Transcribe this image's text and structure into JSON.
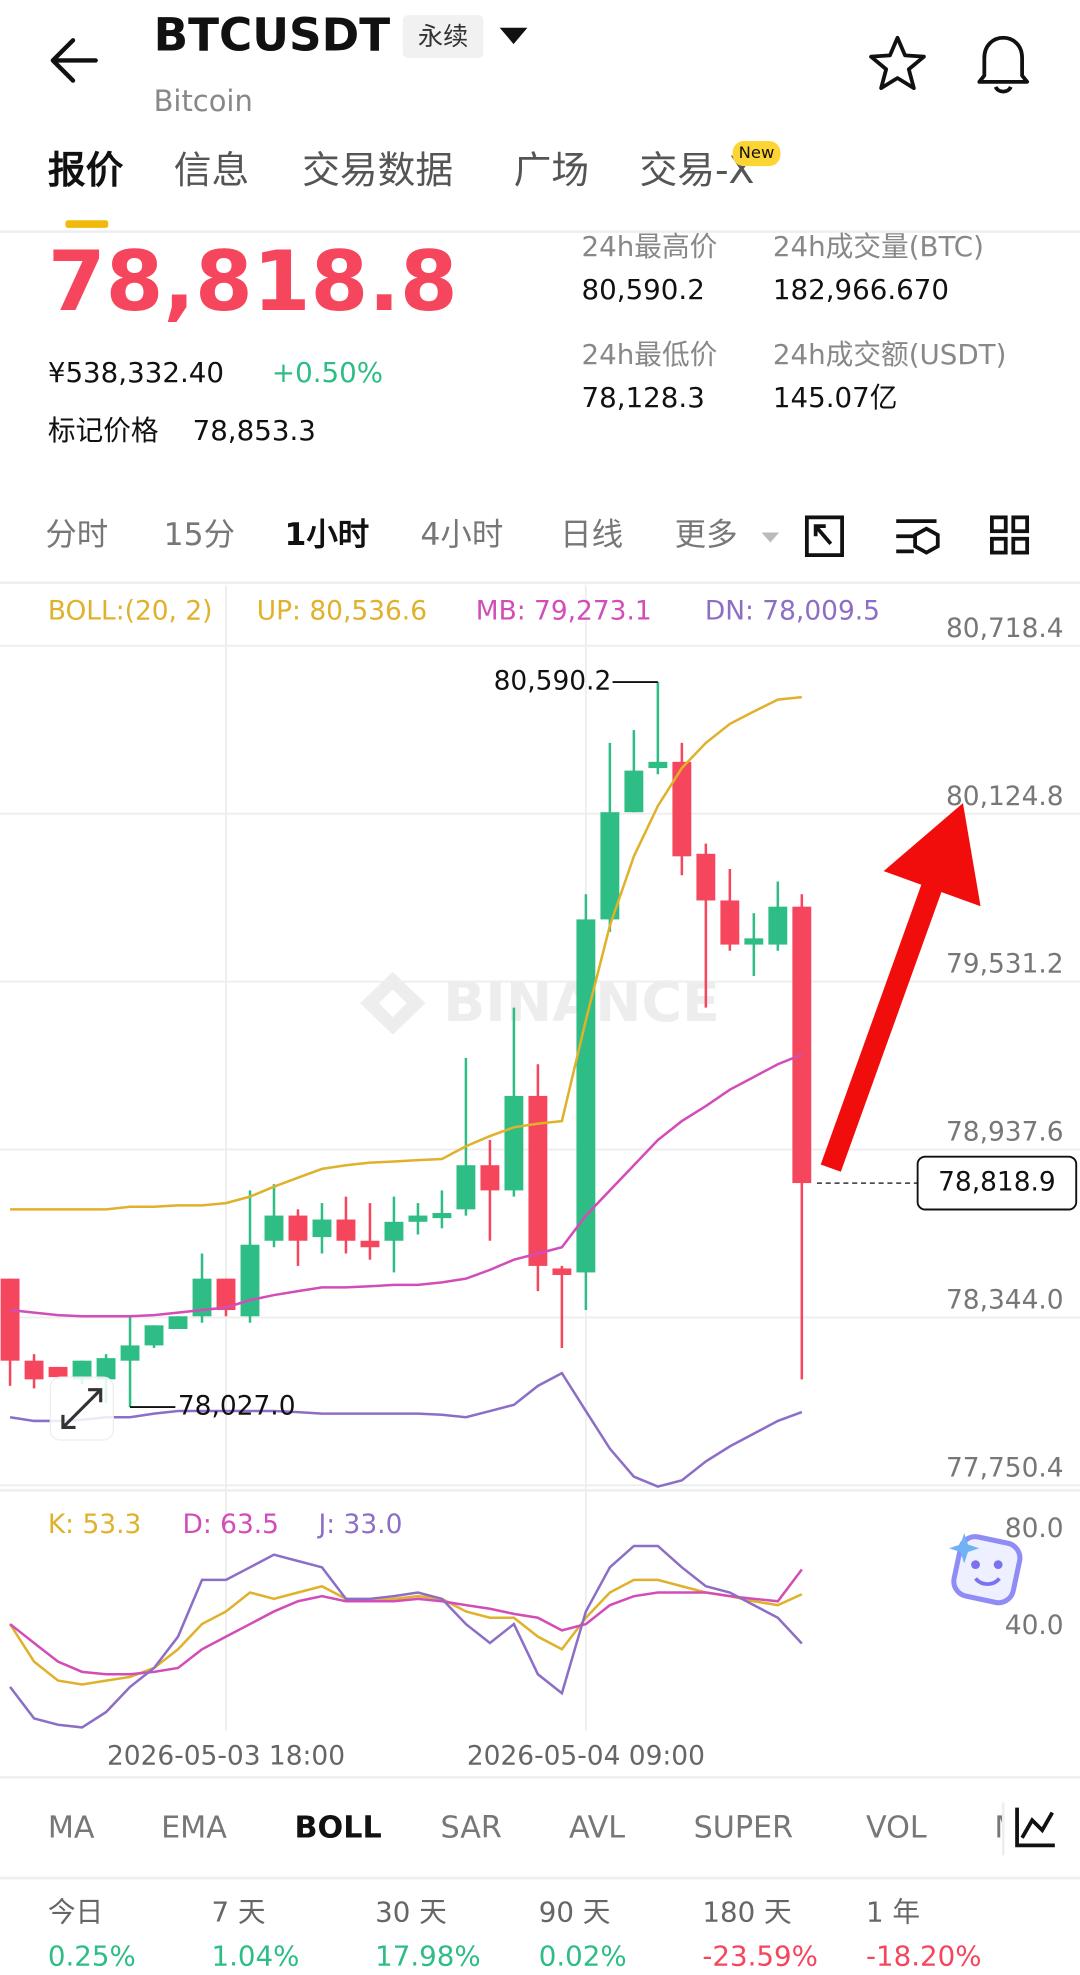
{
  "header": {
    "symbol": "BTCUSDT",
    "contract_tag": "永续",
    "name": "Bitcoin"
  },
  "tabs": {
    "items": [
      "报价",
      "信息",
      "交易数据",
      "广场",
      "交易-X"
    ],
    "active": 0,
    "badge": "New"
  },
  "ticker": {
    "last_price": "78,818.8",
    "cny_price": "¥538,332.40",
    "change": "+0.50%",
    "mark_label": "标记价格",
    "mark_price": "78,853.3",
    "stats": [
      {
        "label": "24h最高价",
        "value": "80,590.2"
      },
      {
        "label": "24h成交量(BTC)",
        "value": "182,966.670"
      },
      {
        "label": "24h最低价",
        "value": "78,128.3"
      },
      {
        "label": "24h成交额(USDT)",
        "value": "145.07亿"
      }
    ]
  },
  "intervals": {
    "items": [
      "分时",
      "15分",
      "1小时",
      "4小时",
      "日线",
      "更多"
    ],
    "active": 2
  },
  "watermark": "BINANCE",
  "chart_data": [
    {
      "type": "candlestick",
      "title": "BOLL:(20, 2)",
      "categories": [
        null,
        null,
        null,
        null,
        null,
        null,
        null,
        null,
        null,
        "2026-05-03 18:00",
        null,
        null,
        null,
        null,
        null,
        null,
        null,
        null,
        null,
        null,
        null,
        null,
        null,
        null,
        "2026-05-04 09:00",
        null,
        null,
        null,
        null,
        null,
        null,
        null,
        null,
        null
      ],
      "open": [
        78481,
        78191,
        78169,
        78125,
        78125,
        78191,
        78245,
        78303,
        78348,
        78481,
        78348,
        78615,
        78704,
        78628,
        78690,
        78615,
        78615,
        78682,
        78695,
        78726,
        78882,
        78793,
        79127,
        78517,
        78503,
        79751,
        80130,
        80286,
        80308,
        79983,
        79818,
        79662,
        79662,
        79796
      ],
      "high": [
        78481,
        78214,
        78169,
        78191,
        78214,
        78348,
        78316,
        78348,
        78570,
        78481,
        78793,
        78815,
        78726,
        78748,
        78771,
        78748,
        78771,
        78748,
        78793,
        79261,
        78971,
        79439,
        79239,
        78526,
        79840,
        80375,
        80420,
        80590.2,
        80375,
        80019,
        79929,
        79773,
        79885,
        79840
      ],
      "low": [
        78102,
        78093,
        78125,
        78108,
        78040,
        78027,
        78236,
        78303,
        78325,
        78348,
        78325,
        78592,
        78526,
        78570,
        78570,
        78548,
        78503,
        78637,
        78659,
        78704,
        78615,
        78771,
        78437,
        78236,
        78370,
        79707,
        80130,
        80264,
        79907,
        79439,
        79640,
        79551,
        79640,
        78125
      ],
      "close": [
        78191,
        78125,
        78133,
        78191,
        78200,
        78245,
        78316,
        78348,
        78481,
        78370,
        78601,
        78704,
        78615,
        78690,
        78615,
        78592,
        78682,
        78704,
        78713,
        78882,
        78793,
        79127,
        78526,
        78494,
        79751,
        80130,
        80277,
        80308,
        79974,
        79818,
        79662,
        79684,
        79796,
        78818.9
      ],
      "up_color": "#2ebd85",
      "down_color": "#f6465d",
      "series": [
        {
          "name": "UP: 80,536.6",
          "color": "#e0b12b",
          "values": [
            78726,
            78726,
            78726,
            78726,
            78726,
            78735,
            78735,
            78740,
            78740,
            78748,
            78771,
            78806,
            78838,
            78869,
            78882,
            78891,
            78895,
            78900,
            78904,
            78949,
            78985,
            79016,
            79029,
            79038,
            79395,
            79729,
            79974,
            80152,
            80286,
            80375,
            80442,
            80486,
            80528,
            80536.6
          ]
        },
        {
          "name": "MB: 79,273.1",
          "color": "#d24db8",
          "values": [
            78370,
            78361,
            78352,
            78348,
            78348,
            78348,
            78352,
            78361,
            78370,
            78379,
            78405,
            78423,
            78437,
            78450,
            78450,
            78454,
            78459,
            78459,
            78468,
            78481,
            78512,
            78548,
            78570,
            78592,
            78704,
            78793,
            78882,
            78971,
            79038,
            79091,
            79149,
            79194,
            79239,
            79273.1
          ]
        },
        {
          "name": "DN: 78,009.5",
          "color": "#8d6ec6",
          "values": [
            77991,
            77978,
            77978,
            77982,
            77991,
            77991,
            78004,
            78013,
            78013,
            78013,
            78013,
            78013,
            78009,
            78004,
            78004,
            78004,
            78004,
            78004,
            78000,
            77991,
            78013,
            78035,
            78102,
            78147,
            78013,
            77880,
            77781,
            77746,
            77768,
            77835,
            77888,
            77933,
            77978,
            78009.5
          ]
        }
      ],
      "ylim": [
        77737,
        80932
      ],
      "yticks": [
        {
          "value": 80718.4,
          "label": "80,718.4"
        },
        {
          "value": 80124.8,
          "label": "80,124.8"
        },
        {
          "value": 79531.2,
          "label": "79,531.2"
        },
        {
          "value": 78937.6,
          "label": "78,937.6"
        },
        {
          "value": 78344.0,
          "label": "78,344.0"
        },
        {
          "value": 77750.4,
          "label": "77,750.4"
        }
      ],
      "grid": true,
      "high_label": {
        "value": 80590.2,
        "label": "80,590.2"
      },
      "low_label": {
        "value": 78027.0,
        "label": "78,027.0"
      },
      "last_price": {
        "value": 78818.9,
        "label": "78,818.9"
      }
    },
    {
      "type": "line",
      "series": [
        {
          "name": "K: 53.3",
          "color": "#e0b12b",
          "values": [
            41.0,
            25.5,
            17.7,
            16.1,
            17.7,
            19.2,
            22.9,
            30.6,
            41.0,
            46.2,
            54.0,
            51.4,
            54.0,
            56.6,
            51.4,
            50.4,
            51.4,
            52.5,
            51.4,
            46.2,
            43.6,
            43.6,
            35.8,
            30.6,
            43.6,
            54.0,
            59.2,
            59.2,
            56.6,
            54.0,
            52.5,
            50.4,
            48.8,
            53.3
          ]
        },
        {
          "name": "D: 63.5",
          "color": "#d24db8",
          "values": [
            41.0,
            33.2,
            25.5,
            21.3,
            20.3,
            20.3,
            21.3,
            22.9,
            30.6,
            35.8,
            41.0,
            46.2,
            50.4,
            52.5,
            50.4,
            50.4,
            50.4,
            51.4,
            50.4,
            48.8,
            47.3,
            45.2,
            43.6,
            38.4,
            41.0,
            48.8,
            52.5,
            54.0,
            54.0,
            54.0,
            52.5,
            51.4,
            50.4,
            63.5
          ]
        },
        {
          "name": "J: 33.0",
          "color": "#8d6ec6",
          "values": [
            15.1,
            2.1,
            -0.5,
            -1.6,
            4.7,
            15.1,
            22.9,
            35.8,
            59.2,
            59.2,
            64.4,
            69.6,
            67.0,
            64.4,
            51.4,
            51.4,
            52.5,
            54.0,
            51.4,
            41.0,
            33.2,
            41.0,
            20.3,
            12.5,
            46.2,
            64.4,
            73.2,
            73.2,
            64.4,
            56.6,
            54.0,
            48.8,
            43.6,
            33.0
          ]
        }
      ],
      "ylim": [
        -3,
        95.6
      ],
      "yticks": [
        {
          "value": 80,
          "label": "80.0"
        },
        {
          "value": 40,
          "label": "40.0"
        }
      ]
    }
  ],
  "indicators": {
    "items": [
      "MA",
      "EMA",
      "BOLL",
      "SAR",
      "AVL",
      "SUPER",
      "VOL",
      "M"
    ],
    "active": 2
  },
  "returns": [
    {
      "period": "今日",
      "value": "0.25%"
    },
    {
      "period": "7 天",
      "value": "1.04%"
    },
    {
      "period": "30 天",
      "value": "17.98%"
    },
    {
      "period": "90 天",
      "value": "0.02%"
    },
    {
      "period": "180 天",
      "value": "-23.59%"
    },
    {
      "period": "1 年",
      "value": "-18.20%"
    }
  ]
}
